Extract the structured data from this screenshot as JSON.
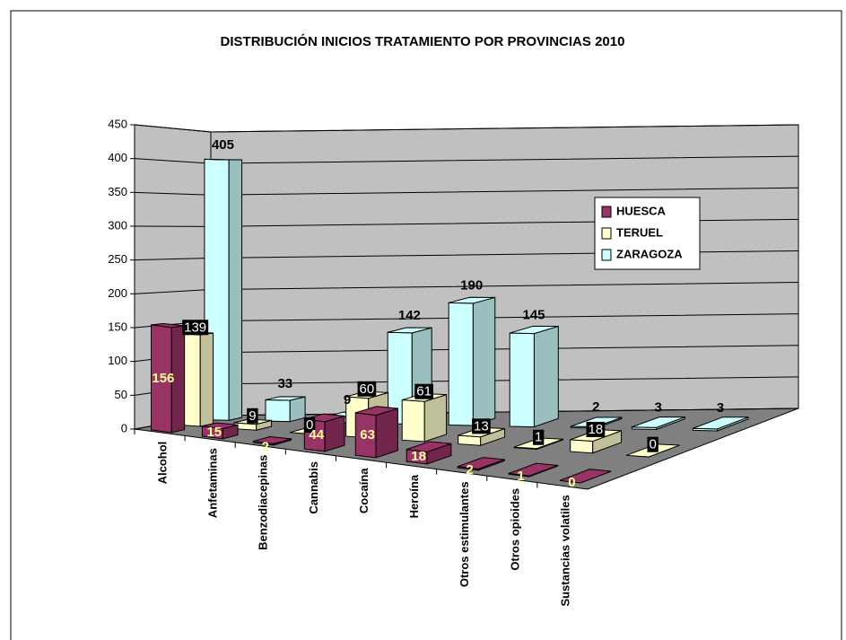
{
  "chart_data": {
    "type": "bar",
    "title": "DISTRIBUCIÓN INICIOS TRATAMIENTO POR PROVINCIAS 2010",
    "categories": [
      "Alcohol",
      "Anfetaminas",
      "Benzodiacepinas",
      "Cannabis",
      "Cocaína",
      "Heroína",
      "Otros estimulantes",
      "Otros opioides",
      "Sustancias volatiles"
    ],
    "series": [
      {
        "name": "HUESCA",
        "color": "#993366",
        "values": [
          156,
          15,
          2,
          44,
          63,
          18,
          2,
          1,
          0
        ]
      },
      {
        "name": "TERUEL",
        "color": "#FFFFCC",
        "values": [
          139,
          9,
          0,
          60,
          61,
          13,
          1,
          18,
          0
        ]
      },
      {
        "name": "ZARAGOZA",
        "color": "#CCFFFF",
        "values": [
          405,
          33,
          9,
          142,
          190,
          145,
          2,
          3,
          3
        ]
      }
    ],
    "ylim": [
      0,
      450
    ],
    "yticks": [
      0,
      50,
      100,
      150,
      200,
      250,
      300,
      350,
      400,
      450
    ],
    "grid": true,
    "legend": "right"
  }
}
